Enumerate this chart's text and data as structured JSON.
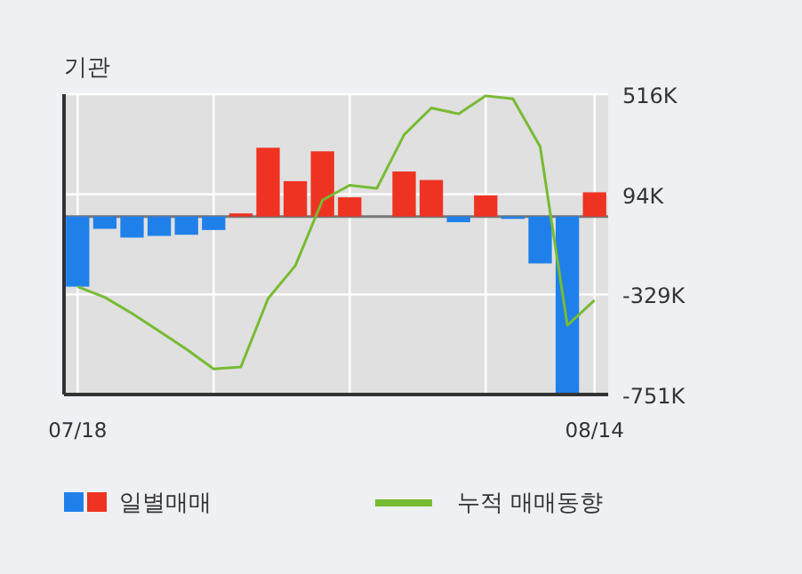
{
  "chart_data": {
    "type": "bar",
    "title": "기관",
    "categories": [
      "07/18",
      null,
      null,
      null,
      null,
      null,
      null,
      null,
      null,
      null,
      null,
      null,
      null,
      null,
      null,
      null,
      null,
      null,
      null,
      "08/14"
    ],
    "series": [
      {
        "name": "일별매매",
        "colors": [
          "#1f80ea",
          "#1f80ea",
          "#1f80ea",
          "#1f80ea",
          "#1f80ea",
          "#1f80ea",
          "#ee3322",
          "#ee3322",
          "#ee3322",
          "#ee3322",
          "#ee3322",
          "#ee3322",
          "#ee3322",
          "#ee3322",
          "#1f80ea",
          "#ee3322",
          "#1f80ea",
          "#1f80ea",
          "#1f80ea",
          "#ee3322"
        ],
        "values": [
          -296000,
          -52000,
          -89000,
          -82000,
          -77000,
          -57000,
          13000,
          290000,
          149000,
          275000,
          81000,
          0,
          190000,
          154000,
          -24000,
          89000,
          -10000,
          -198000,
          -748000,
          102000
        ]
      },
      {
        "name": "누적 매매동향",
        "type": "line",
        "color": "#77bb33",
        "values": [
          -296000,
          -341000,
          -409000,
          -484000,
          -560000,
          -643000,
          -635000,
          -346000,
          -208000,
          69000,
          132000,
          119000,
          345000,
          458000,
          433000,
          509000,
          496000,
          295000,
          -459000,
          -353000
        ]
      }
    ],
    "ylim": [
      -751000,
      516000
    ],
    "yticks": [
      {
        "value": 516000,
        "label": "516K"
      },
      {
        "value": 94000,
        "label": "94K"
      },
      {
        "value": -329000,
        "label": "-329K"
      },
      {
        "value": -751000,
        "label": "-751K"
      }
    ],
    "grid": true,
    "legend": "bottom"
  }
}
